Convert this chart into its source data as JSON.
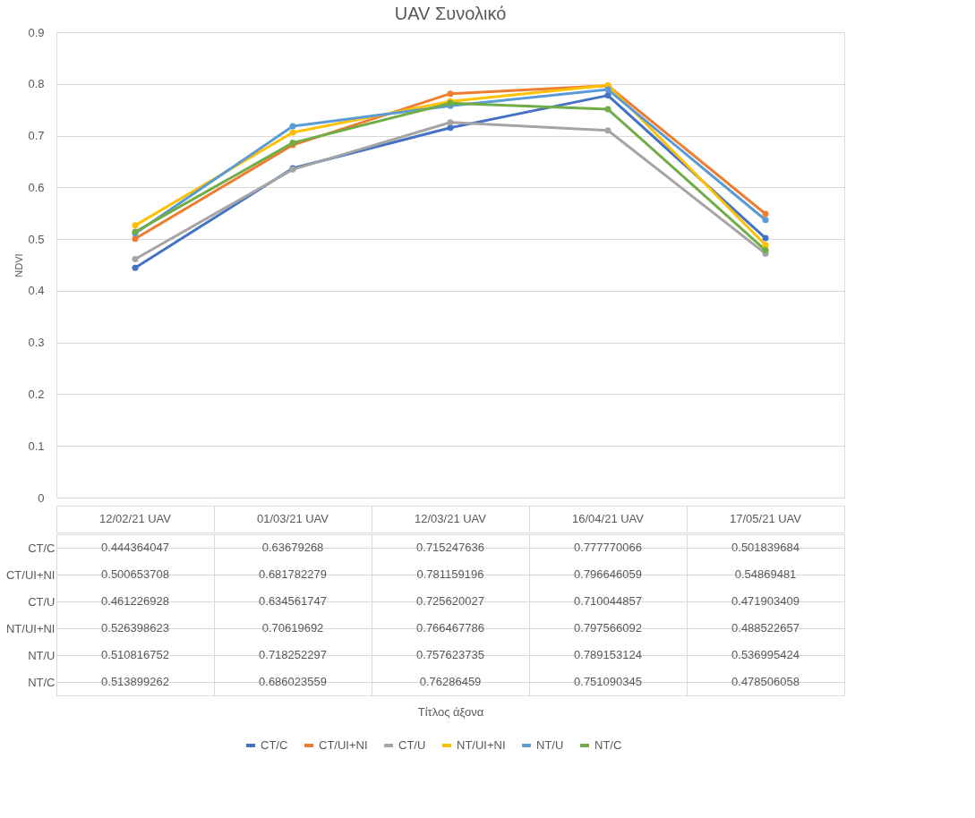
{
  "chart_data": {
    "type": "line",
    "title": "UAV Συνολικό",
    "annotations": [
      "Τίτλος άξονα"
    ],
    "ylabel": "NDVI",
    "categories": [
      "12/02/21 UAV",
      "01/03/21 UAV",
      "12/03/21 UAV",
      "16/04/21 UAV",
      "17/05/21 UAV"
    ],
    "series": [
      {
        "name": "CT/C",
        "color": "#4472c4",
        "values": [
          0.444364047,
          0.63679268,
          0.715247636,
          0.777770066,
          0.501839684
        ]
      },
      {
        "name": "CT/UI+NI",
        "color": "#ed7d31",
        "values": [
          0.500653708,
          0.681782279,
          0.781159196,
          0.796646059,
          0.54869481
        ]
      },
      {
        "name": "CT/U",
        "color": "#a5a5a5",
        "values": [
          0.461226928,
          0.634561747,
          0.725620027,
          0.710044857,
          0.471903409
        ]
      },
      {
        "name": "NT/UI+NI",
        "color": "#ffc000",
        "values": [
          0.526398623,
          0.70619692,
          0.766467786,
          0.797566092,
          0.488522657
        ]
      },
      {
        "name": "NT/U",
        "color": "#5b9bd5",
        "values": [
          0.510816752,
          0.718252297,
          0.757623735,
          0.789153124,
          0.536995424
        ]
      },
      {
        "name": "NT/C",
        "color": "#70ad47",
        "values": [
          0.513899262,
          0.686023559,
          0.76286459,
          0.751090345,
          0.478506058
        ]
      }
    ],
    "ylim": [
      0,
      0.9
    ],
    "yticks": [
      0,
      0.1,
      0.2,
      0.3,
      0.4,
      0.5,
      0.6,
      0.7,
      0.8,
      0.9
    ],
    "grid": "y",
    "legend": "bottom",
    "marker": "circle",
    "data_labels": true
  }
}
